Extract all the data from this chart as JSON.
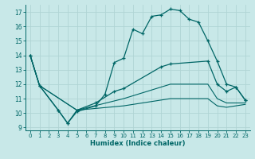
{
  "xlabel": "Humidex (Indice chaleur)",
  "background_color": "#c8e8e8",
  "grid_color": "#b0d4d4",
  "line_color": "#006666",
  "xlim": [
    -0.5,
    23.5
  ],
  "ylim": [
    8.8,
    17.5
  ],
  "yticks": [
    9,
    10,
    11,
    12,
    13,
    14,
    15,
    16,
    17
  ],
  "xticks": [
    0,
    1,
    2,
    3,
    4,
    5,
    6,
    7,
    8,
    9,
    10,
    11,
    12,
    13,
    14,
    15,
    16,
    17,
    18,
    19,
    20,
    21,
    22,
    23
  ],
  "line1_x": [
    0,
    1,
    3,
    4,
    5,
    7,
    8,
    9,
    10,
    11,
    12,
    13,
    14,
    15,
    16,
    17,
    18,
    19,
    20,
    21,
    22,
    23
  ],
  "line1_y": [
    14.0,
    11.9,
    10.2,
    9.3,
    10.1,
    10.5,
    11.3,
    13.5,
    13.8,
    15.8,
    15.5,
    16.7,
    16.8,
    17.2,
    17.1,
    16.5,
    16.3,
    15.0,
    13.6,
    12.0,
    11.8,
    10.9
  ],
  "line2_x": [
    0,
    1,
    3,
    4,
    5,
    7,
    9,
    10,
    14,
    15,
    19,
    20,
    21,
    22,
    23
  ],
  "line2_y": [
    14.0,
    11.9,
    10.2,
    9.3,
    10.2,
    10.7,
    11.5,
    11.7,
    13.2,
    13.4,
    13.6,
    12.0,
    11.5,
    11.8,
    10.9
  ],
  "line3_x": [
    0,
    1,
    5,
    10,
    15,
    19,
    20,
    21,
    22,
    23
  ],
  "line3_y": [
    14.0,
    11.9,
    10.2,
    11.0,
    12.0,
    12.0,
    11.0,
    10.7,
    10.7,
    10.7
  ],
  "line4_x": [
    0,
    1,
    5,
    10,
    15,
    19,
    20,
    21,
    22,
    23
  ],
  "line4_y": [
    14.0,
    11.9,
    10.2,
    10.5,
    11.0,
    11.0,
    10.5,
    10.4,
    10.5,
    10.6
  ]
}
